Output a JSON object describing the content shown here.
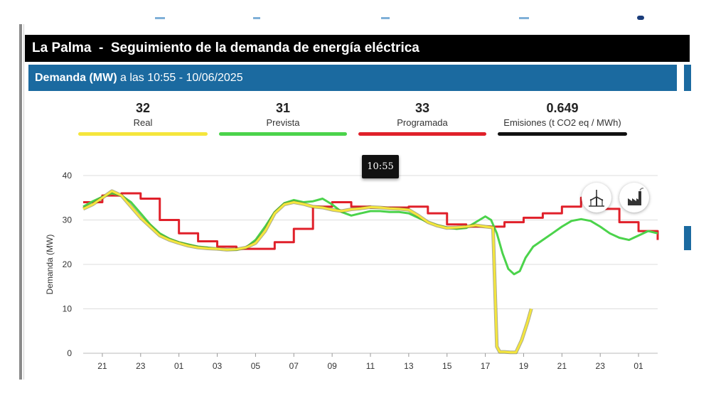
{
  "header": {
    "title": "La Palma  -  Seguimiento de la demanda de energía eléctrica",
    "subtitle_bold": "Demanda (MW)",
    "subtitle_rest": " a las 10:55 - 10/06/2025"
  },
  "summary": [
    {
      "value": "32",
      "label": "Real",
      "color": "#f5e63c"
    },
    {
      "value": "31",
      "label": "Prevista",
      "color": "#4bd34b"
    },
    {
      "value": "33",
      "label": "Programada",
      "color": "#e0202a"
    },
    {
      "value": "0.649",
      "label": "Emisiones (t CO2 eq / MWh)",
      "color": "#111111"
    }
  ],
  "tooltip": "10:55",
  "buttons": [
    {
      "icon": "wind-turbine-icon"
    },
    {
      "icon": "factory-icon"
    }
  ],
  "chart_data": {
    "type": "line",
    "ylabel": "Demanda (MW)",
    "xlabel": "",
    "ylim": [
      0,
      40
    ],
    "yticks": [
      0,
      10,
      20,
      30,
      40
    ],
    "xlim": [
      20,
      50
    ],
    "x_tick_positions": [
      21,
      23,
      25,
      27,
      29,
      31,
      33,
      35,
      37,
      39,
      41,
      43,
      45,
      47,
      49
    ],
    "x_tick_labels": [
      "21",
      "23",
      "01",
      "03",
      "05",
      "07",
      "09",
      "11",
      "13",
      "15",
      "17",
      "19",
      "21",
      "23",
      "01"
    ],
    "grid": true,
    "series": [
      {
        "name": "Real",
        "color": "#f5e63c",
        "x": [
          20.0,
          20.5,
          21.0,
          21.5,
          22.0,
          22.5,
          23.0,
          23.5,
          24.0,
          24.5,
          25.0,
          25.5,
          26.0,
          26.5,
          27.0,
          27.5,
          28.0,
          28.5,
          29.0,
          29.5,
          30.0,
          30.5,
          31.0,
          31.5,
          32.0,
          32.5,
          33.0,
          33.5,
          34.0,
          34.5,
          35.0,
          35.5,
          36.0,
          36.5,
          37.0,
          37.5,
          38.0,
          38.5,
          39.0,
          39.5,
          40.0,
          40.5,
          41.0,
          41.4,
          41.6,
          41.75,
          42.0,
          42.3,
          42.6,
          42.9,
          43.2,
          43.4
        ],
        "y": [
          32.5,
          33.5,
          35.0,
          36.5,
          35.5,
          33.0,
          30.5,
          28.5,
          26.5,
          25.5,
          24.8,
          24.2,
          23.8,
          23.6,
          23.5,
          23.3,
          23.4,
          23.8,
          24.8,
          27.5,
          31.5,
          33.5,
          34.0,
          33.6,
          33.0,
          32.8,
          32.3,
          32.0,
          32.4,
          32.6,
          32.9,
          32.8,
          32.6,
          32.5,
          32.3,
          31.0,
          29.5,
          28.7,
          28.2,
          28.3,
          28.5,
          28.8,
          28.5,
          28.3,
          1.5,
          0.3,
          0.3,
          0.2,
          0.2,
          3.0,
          7.0,
          10.0
        ]
      },
      {
        "name": "Prevista",
        "color": "#4bd34b",
        "x": [
          20.0,
          20.5,
          21.0,
          21.5,
          22.0,
          22.5,
          23.0,
          23.5,
          24.0,
          24.5,
          25.0,
          25.5,
          26.0,
          26.5,
          27.0,
          27.5,
          28.0,
          28.5,
          29.0,
          29.5,
          30.0,
          30.5,
          31.0,
          31.5,
          32.0,
          32.5,
          33.0,
          33.5,
          34.0,
          34.5,
          35.0,
          35.5,
          36.0,
          36.5,
          37.0,
          37.5,
          38.0,
          38.5,
          39.0,
          39.5,
          40.0,
          40.5,
          41.0,
          41.3,
          41.6,
          41.9,
          42.2,
          42.5,
          42.8,
          43.1,
          43.5,
          44.0,
          44.5,
          45.0,
          45.5,
          46.0,
          46.5,
          47.0,
          47.5,
          48.0,
          48.5,
          49.0,
          49.5,
          50.0
        ],
        "y": [
          33.0,
          34.2,
          35.2,
          36.0,
          35.5,
          34.0,
          31.5,
          29.0,
          27.0,
          25.8,
          25.0,
          24.5,
          24.0,
          23.8,
          23.5,
          23.3,
          23.3,
          23.8,
          25.5,
          28.5,
          31.8,
          33.8,
          34.5,
          34.0,
          34.2,
          34.8,
          33.5,
          31.8,
          31.0,
          31.5,
          32.0,
          32.0,
          31.8,
          31.8,
          31.5,
          30.5,
          29.5,
          28.8,
          28.3,
          28.0,
          28.2,
          29.5,
          30.8,
          30.0,
          27.0,
          22.5,
          19.0,
          17.8,
          18.5,
          21.5,
          24.0,
          25.5,
          27.0,
          28.5,
          29.8,
          30.2,
          29.8,
          28.5,
          27.0,
          26.0,
          25.5,
          26.5,
          27.5,
          27.0
        ]
      },
      {
        "name": "Programada",
        "color": "#e0202a",
        "step": true,
        "x": [
          20,
          21,
          22,
          23,
          24,
          25,
          26,
          27,
          28,
          29,
          30,
          31,
          32,
          33,
          34,
          35,
          36,
          37,
          38,
          39,
          40,
          41,
          42,
          43,
          44,
          45,
          46,
          47,
          48,
          49,
          50
        ],
        "y": [
          34.0,
          35.5,
          36.0,
          34.8,
          30.0,
          27.0,
          25.2,
          24.0,
          23.5,
          23.5,
          25.0,
          28.0,
          33.0,
          34.0,
          33.0,
          32.8,
          32.8,
          33.0,
          31.5,
          29.0,
          28.5,
          28.5,
          29.5,
          30.5,
          31.5,
          33.0,
          35.0,
          32.5,
          29.5,
          27.5,
          25.5
        ]
      }
    ]
  }
}
